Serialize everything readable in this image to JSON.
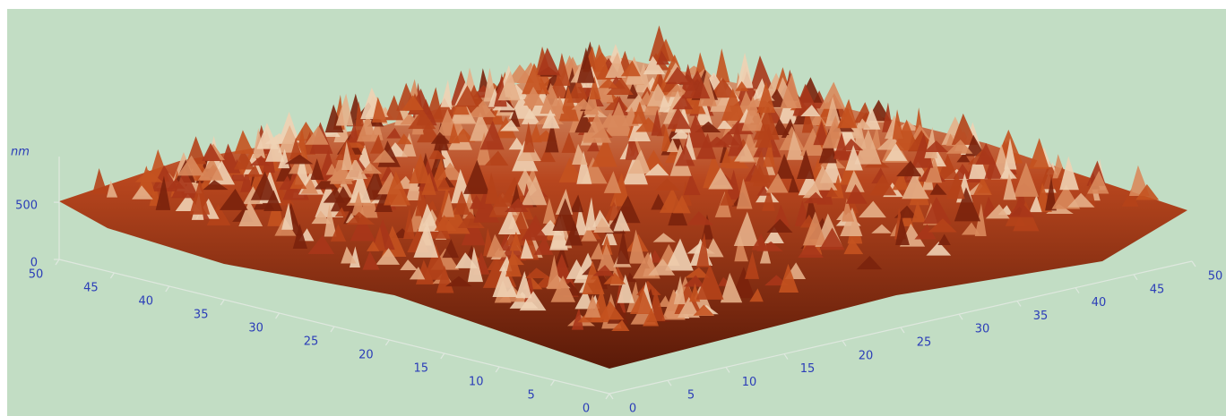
{
  "chart_data": {
    "type": "surface3d",
    "z_label": "nm",
    "xlim": [
      0,
      50
    ],
    "xticks": [
      0,
      5,
      10,
      15,
      20,
      25,
      30,
      35,
      40,
      45,
      50
    ],
    "ylim": [
      0,
      50
    ],
    "yticks": [
      0,
      5,
      10,
      15,
      20,
      25,
      30,
      35,
      40,
      45,
      50
    ],
    "zlim": [
      0,
      900
    ],
    "zticks": [
      0,
      500
    ]
  }
}
